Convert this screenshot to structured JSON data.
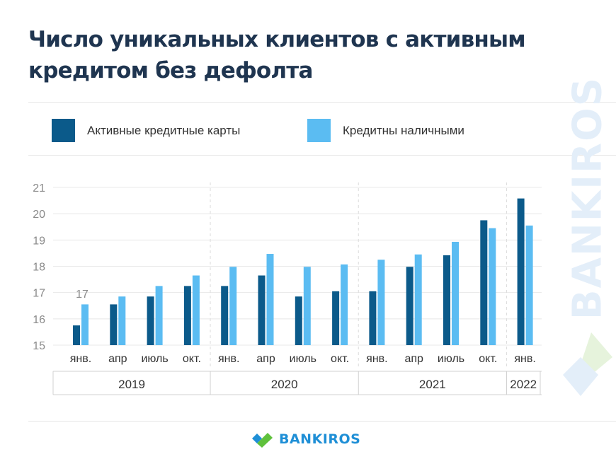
{
  "title": "Число уникальных клиентов с активным кредитом без дефолта",
  "watermark": "BANKIROS",
  "footer": {
    "brand": "BANKIROS"
  },
  "colors": {
    "dark": "#0b5a8a",
    "light": "#5bbcf2",
    "brand_green": "#5fc13c",
    "brand_blue": "#1f8fd6"
  },
  "chart_data": {
    "type": "bar",
    "categories": [
      "янв.",
      "апр",
      "июль",
      "окт.",
      "янв.",
      "апр",
      "июль",
      "окт.",
      "янв.",
      "апр",
      "июль",
      "окт.",
      "янв."
    ],
    "year_groups": [
      {
        "label": "2019",
        "start": 0,
        "end": 3
      },
      {
        "label": "2020",
        "start": 4,
        "end": 7
      },
      {
        "label": "2021",
        "start": 8,
        "end": 11
      },
      {
        "label": "2022",
        "start": 12,
        "end": 12
      }
    ],
    "series": [
      {
        "name": "Активные кредитные карты",
        "color": "#0b5a8a",
        "values": [
          15.75,
          16.55,
          16.85,
          17.25,
          17.25,
          17.65,
          16.85,
          17.05,
          17.05,
          17.98,
          18.42,
          19.75,
          20.58
        ]
      },
      {
        "name": "Кредитны наличными",
        "color": "#5bbcf2",
        "values": [
          16.55,
          16.85,
          17.25,
          17.65,
          17.98,
          18.47,
          17.98,
          18.07,
          18.25,
          18.45,
          18.93,
          19.45,
          19.55
        ]
      }
    ],
    "annotations": [
      {
        "text": "17",
        "index": 0
      }
    ],
    "ylim": [
      15,
      21
    ],
    "yticks": [
      15,
      16,
      17,
      18,
      19,
      20,
      21
    ],
    "grid": true,
    "legend_position": "top-left"
  }
}
